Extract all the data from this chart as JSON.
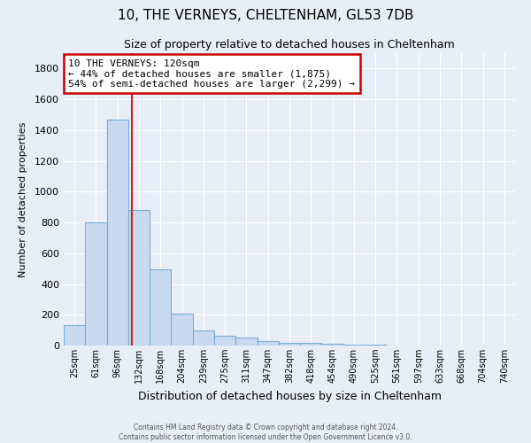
{
  "title": "10, THE VERNEYS, CHELTENHAM, GL53 7DB",
  "subtitle": "Size of property relative to detached houses in Cheltenham",
  "xlabel": "Distribution of detached houses by size in Cheltenham",
  "ylabel": "Number of detached properties",
  "bar_labels": [
    "25sqm",
    "61sqm",
    "96sqm",
    "132sqm",
    "168sqm",
    "204sqm",
    "239sqm",
    "275sqm",
    "311sqm",
    "347sqm",
    "382sqm",
    "418sqm",
    "454sqm",
    "490sqm",
    "525sqm",
    "561sqm",
    "597sqm",
    "633sqm",
    "668sqm",
    "704sqm",
    "740sqm"
  ],
  "bar_values": [
    130,
    800,
    1470,
    880,
    495,
    205,
    100,
    65,
    50,
    30,
    20,
    15,
    10,
    3,
    3,
    2,
    2,
    1,
    1,
    1,
    1
  ],
  "bar_color": "#c9d9ee",
  "bar_edge_color": "#7aadd4",
  "ylim": [
    0,
    1900
  ],
  "yticks": [
    0,
    200,
    400,
    600,
    800,
    1000,
    1200,
    1400,
    1600,
    1800
  ],
  "marker_label": "10 THE VERNEYS: 120sqm",
  "annotation_line1": "← 44% of detached houses are smaller (1,875)",
  "annotation_line2": "54% of semi-detached houses are larger (2,299) →",
  "annotation_box_color": "#ffffff",
  "annotation_box_edge": "#cc0000",
  "vline_color": "#cc2222",
  "background_color": "#e8eef8",
  "grid_color": "#ffffff",
  "footer1": "Contains HM Land Registry data © Crown copyright and database right 2024.",
  "footer2": "Contains public sector information licensed under the Open Government Licence v3.0."
}
